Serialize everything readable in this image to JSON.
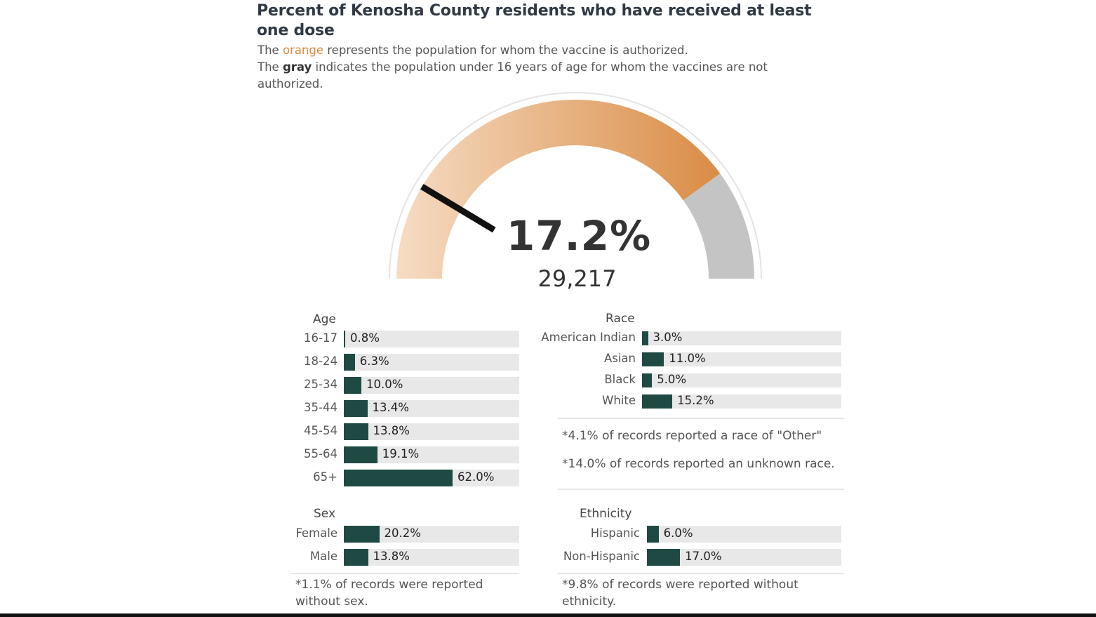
{
  "title": "Percent of Kenosha County residents who have received at least one dose",
  "subtitle": {
    "l1a": "The ",
    "l1b": "orange",
    "l1c": " represents the population for whom the vaccine is authorized.",
    "l2a": "The ",
    "l2b": "gray",
    "l2c": " indicates the population under 16 years of age for whom the vaccines are not authorized."
  },
  "gauge": {
    "percent_label": "17.2%",
    "count": "29,217",
    "value": 17.2,
    "authorized_pct": 80
  },
  "colors": {
    "bar": "#1f4a44",
    "track": "#e8e8e8",
    "orange_light": "#f6dcc4",
    "orange_dark": "#d98c45",
    "gray": "#c4c4c4"
  },
  "chart_data": [
    {
      "type": "bar",
      "title": "Age",
      "categories": [
        "16-17",
        "18-24",
        "25-34",
        "35-44",
        "45-54",
        "55-64",
        "65+"
      ],
      "values": [
        0.8,
        6.3,
        10.0,
        13.4,
        13.8,
        19.1,
        62.0
      ],
      "labels": [
        "0.8%",
        "6.3%",
        "10.0%",
        "13.4%",
        "13.8%",
        "19.1%",
        "62.0%"
      ],
      "xlim": [
        0,
        100
      ]
    },
    {
      "type": "bar",
      "title": "Race",
      "categories": [
        "American Indian",
        "Asian",
        "Black",
        "White"
      ],
      "values": [
        3.0,
        11.0,
        5.0,
        15.2
      ],
      "labels": [
        "3.0%",
        "11.0%",
        "5.0%",
        "15.2%"
      ],
      "xlim": [
        0,
        100
      ]
    },
    {
      "type": "bar",
      "title": "Sex",
      "categories": [
        "Female",
        "Male"
      ],
      "values": [
        20.2,
        13.8
      ],
      "labels": [
        "20.2%",
        "13.8%"
      ],
      "xlim": [
        0,
        100
      ]
    },
    {
      "type": "bar",
      "title": "Ethnicity",
      "categories": [
        "Hispanic",
        "Non-Hispanic"
      ],
      "values": [
        6.0,
        17.0
      ],
      "labels": [
        "6.0%",
        "17.0%"
      ],
      "xlim": [
        0,
        100
      ]
    }
  ],
  "notes": {
    "race_other": "*4.1% of records reported a race of \"Other\"",
    "race_unknown": "*14.0% of records reported an unknown race.",
    "sex": "*1.1% of records were reported without sex.",
    "ethnicity": "*9.8% of records were reported without ethnicity."
  }
}
